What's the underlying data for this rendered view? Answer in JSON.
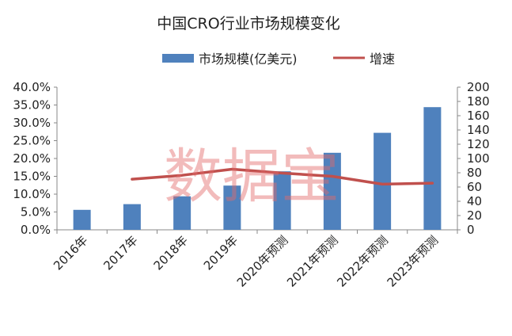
{
  "chart_data": {
    "type": "bar",
    "title": "中国CRO行业市场规模变化",
    "categories": [
      "2016年",
      "2017年",
      "2018年",
      "2019年",
      "2020年预测",
      "2021年预测",
      "2022年预测",
      "2023年预测"
    ],
    "series": [
      {
        "name": "市场规模(亿美元)",
        "type": "bar",
        "axis": "right",
        "values": [
          28,
          36,
          47,
          62,
          82,
          108,
          136,
          172
        ],
        "color": "#4F81BD"
      },
      {
        "name": "增速",
        "type": "line",
        "axis": "left",
        "values": [
          null,
          0.142,
          0.153,
          0.17,
          0.159,
          0.15,
          0.128,
          0.131
        ],
        "color": "#C0504D"
      }
    ],
    "y_left": {
      "ylim": [
        0,
        0.4
      ],
      "ticks": [
        "0.0%",
        "5.0%",
        "10.0%",
        "15.0%",
        "20.0%",
        "25.0%",
        "30.0%",
        "35.0%",
        "40.0%"
      ]
    },
    "y_right": {
      "ylim": [
        0,
        200
      ],
      "ticks": [
        "0",
        "20",
        "40",
        "60",
        "80",
        "100",
        "120",
        "140",
        "160",
        "180",
        "200"
      ]
    },
    "legend_position": "top",
    "grid": false
  },
  "watermark": "数据宝"
}
